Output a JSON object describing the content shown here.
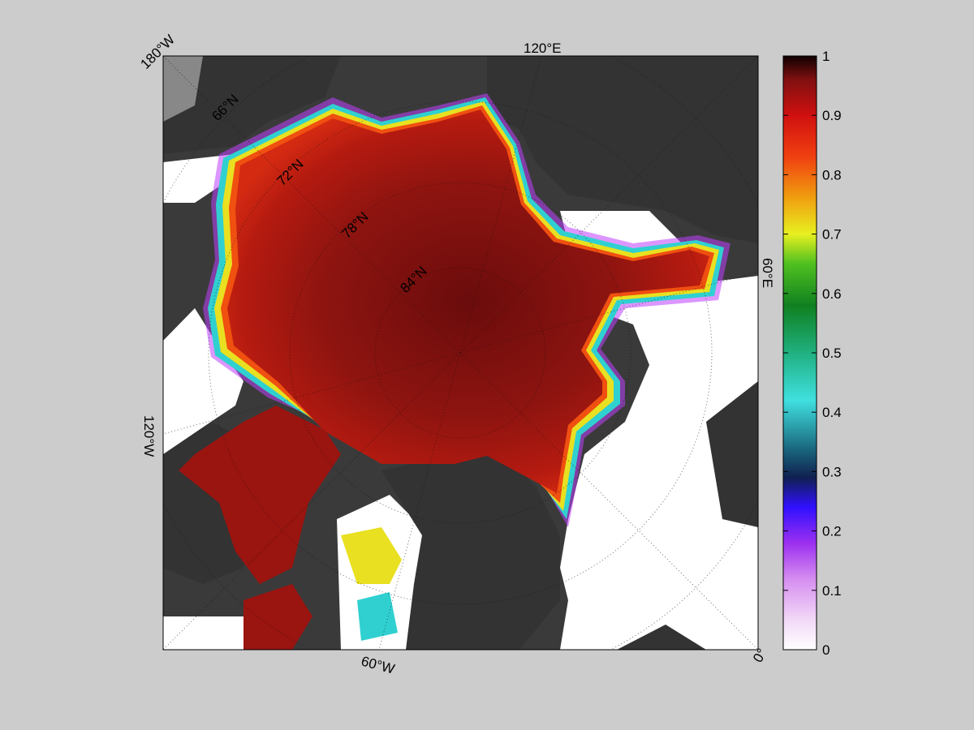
{
  "map": {
    "projection": "north polar stereographic",
    "longitude_labels": [
      {
        "text": "180°W",
        "lon": 180
      },
      {
        "text": "120°E",
        "lon": 120
      },
      {
        "text": "60°E",
        "lon": 60
      },
      {
        "text": "0°",
        "lon": 0
      },
      {
        "text": "60°W",
        "lon": -60
      },
      {
        "text": "120°W",
        "lon": -120
      }
    ],
    "latitude_labels": [
      "66°N",
      "72°N",
      "78°N",
      "84°N"
    ],
    "background_color": "#cccccc",
    "land_color": "#3a3a3a",
    "open_water_color": "#ffffff",
    "graticule": "dotted"
  },
  "colorbar": {
    "range": [
      0,
      1
    ],
    "tick_labels": [
      "0",
      "0.1",
      "0.2",
      "0.3",
      "0.4",
      "0.5",
      "0.6",
      "0.7",
      "0.8",
      "0.9",
      "1"
    ],
    "colormap_stops": [
      {
        "v": 0.0,
        "c": "#ffffff"
      },
      {
        "v": 0.05,
        "c": "#f2d9f7"
      },
      {
        "v": 0.12,
        "c": "#d58cf0"
      },
      {
        "v": 0.18,
        "c": "#9b2ff0"
      },
      {
        "v": 0.24,
        "c": "#3010ff"
      },
      {
        "v": 0.29,
        "c": "#102050"
      },
      {
        "v": 0.34,
        "c": "#1a6a80"
      },
      {
        "v": 0.42,
        "c": "#40e0e0"
      },
      {
        "v": 0.5,
        "c": "#20b080"
      },
      {
        "v": 0.58,
        "c": "#108020"
      },
      {
        "v": 0.65,
        "c": "#50c020"
      },
      {
        "v": 0.7,
        "c": "#e8f020"
      },
      {
        "v": 0.76,
        "c": "#f0a010"
      },
      {
        "v": 0.83,
        "c": "#f04010"
      },
      {
        "v": 0.9,
        "c": "#d01010"
      },
      {
        "v": 0.96,
        "c": "#801010"
      },
      {
        "v": 1.0,
        "c": "#100000"
      }
    ]
  }
}
